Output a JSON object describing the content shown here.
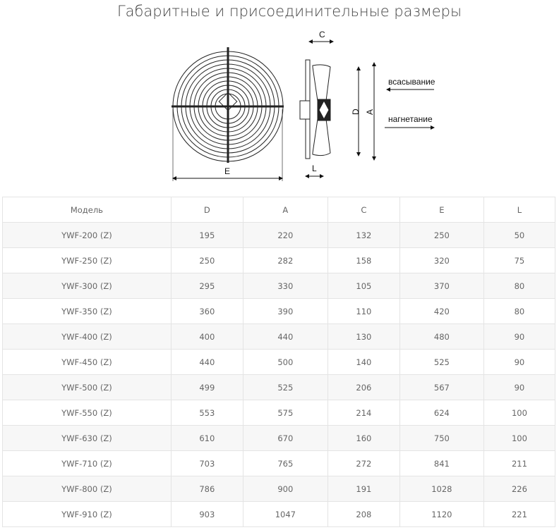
{
  "title": "Габаритные и присоединительные размеры",
  "diagram": {
    "labels": {
      "C": "C",
      "D": "D",
      "A": "A",
      "E": "E",
      "L": "L"
    },
    "suction": "всасывание",
    "discharge": "нагнетание"
  },
  "table": {
    "headers": [
      "Модель",
      "D",
      "A",
      "C",
      "E",
      "L"
    ],
    "rows": [
      [
        "YWF-200 (Z)",
        "195",
        "220",
        "132",
        "250",
        "50"
      ],
      [
        "YWF-250 (Z)",
        "250",
        "282",
        "158",
        "320",
        "75"
      ],
      [
        "YWF-300 (Z)",
        "295",
        "330",
        "105",
        "370",
        "80"
      ],
      [
        "YWF-350 (Z)",
        "360",
        "390",
        "110",
        "420",
        "80"
      ],
      [
        "YWF-400 (Z)",
        "400",
        "440",
        "130",
        "480",
        "90"
      ],
      [
        "YWF-450 (Z)",
        "440",
        "500",
        "140",
        "525",
        "90"
      ],
      [
        "YWF-500 (Z)",
        "499",
        "525",
        "206",
        "567",
        "90"
      ],
      [
        "YWF-550 (Z)",
        "553",
        "575",
        "214",
        "624",
        "100"
      ],
      [
        "YWF-630 (Z)",
        "610",
        "670",
        "160",
        "750",
        "100"
      ],
      [
        "YWF-710 (Z)",
        "703",
        "765",
        "272",
        "841",
        "211"
      ],
      [
        "YWF-800 (Z)",
        "786",
        "900",
        "191",
        "1028",
        "226"
      ],
      [
        "YWF-910 (Z)",
        "903",
        "1047",
        "208",
        "1120",
        "221"
      ]
    ]
  }
}
